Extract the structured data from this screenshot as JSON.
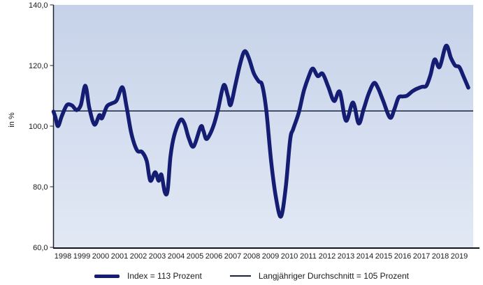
{
  "chart_data": {
    "type": "line",
    "title": "",
    "ylabel": "in %",
    "y_axis": {
      "min": 60,
      "max": 140,
      "tick_values": [
        60,
        80,
        100,
        120,
        140
      ],
      "tick_labels": [
        "60,0",
        "80,0",
        "100,0",
        "120,0",
        "140,0"
      ]
    },
    "x_axis": {
      "tick_labels": [
        "1998",
        "1999",
        "2000",
        "2001",
        "2002",
        "2003",
        "2004",
        "2005",
        "2006",
        "2007",
        "2008",
        "2009",
        "2010",
        "2011",
        "2012",
        "2013",
        "2014",
        "2015",
        "2016",
        "2017",
        "2018",
        "2019"
      ]
    },
    "grid": false,
    "legend_position": "bottom",
    "plot_background_top": "#c6d2e9",
    "plot_background_bottom": "#e2e9f5",
    "axis_color": "#1c2430",
    "text_color": "#1a1a1a",
    "average_line": {
      "value": 105,
      "color": "#17233c",
      "label": "Langjähriger Durchschnitt = 105 Prozent"
    },
    "series": [
      {
        "name": "Index",
        "label": "Index = 113 Prozent",
        "color": "#141d72",
        "latest_value": 113,
        "points": [
          [
            0.0,
            104.8
          ],
          [
            0.1,
            103.0
          ],
          [
            0.24,
            100.0
          ],
          [
            0.45,
            103.5
          ],
          [
            0.72,
            107.0
          ],
          [
            0.98,
            106.8
          ],
          [
            1.1,
            106.0
          ],
          [
            1.24,
            105.3
          ],
          [
            1.45,
            107.0
          ],
          [
            1.69,
            113.3
          ],
          [
            1.9,
            106.0
          ],
          [
            2.17,
            100.5
          ],
          [
            2.43,
            103.6
          ],
          [
            2.57,
            102.6
          ],
          [
            2.83,
            106.5
          ],
          [
            3.09,
            107.5
          ],
          [
            3.35,
            108.5
          ],
          [
            3.65,
            112.8
          ],
          [
            3.87,
            106.5
          ],
          [
            4.13,
            97.5
          ],
          [
            4.43,
            92.0
          ],
          [
            4.69,
            91.5
          ],
          [
            4.94,
            88.5
          ],
          [
            5.13,
            82.0
          ],
          [
            5.39,
            84.8
          ],
          [
            5.57,
            82.0
          ],
          [
            5.72,
            84.0
          ],
          [
            5.9,
            78.2
          ],
          [
            6.05,
            78.8
          ],
          [
            6.2,
            90.0
          ],
          [
            6.4,
            97.0
          ],
          [
            6.72,
            102.0
          ],
          [
            6.94,
            100.8
          ],
          [
            7.17,
            96.0
          ],
          [
            7.43,
            93.3
          ],
          [
            7.8,
            99.8
          ],
          [
            7.94,
            98.5
          ],
          [
            8.09,
            95.8
          ],
          [
            8.28,
            97.2
          ],
          [
            8.5,
            100.5
          ],
          [
            8.72,
            105.5
          ],
          [
            9.02,
            113.5
          ],
          [
            9.24,
            110.0
          ],
          [
            9.39,
            107.0
          ],
          [
            9.65,
            114.0
          ],
          [
            9.91,
            121.0
          ],
          [
            10.13,
            124.7
          ],
          [
            10.35,
            122.5
          ],
          [
            10.61,
            117.5
          ],
          [
            10.87,
            114.8
          ],
          [
            11.06,
            113.5
          ],
          [
            11.28,
            105.0
          ],
          [
            11.54,
            88.0
          ],
          [
            11.8,
            76.0
          ],
          [
            12.06,
            70.2
          ],
          [
            12.31,
            80.0
          ],
          [
            12.54,
            95.5
          ],
          [
            12.7,
            99.0
          ],
          [
            13.0,
            104.5
          ],
          [
            13.26,
            111.5
          ],
          [
            13.52,
            116.3
          ],
          [
            13.74,
            119.0
          ],
          [
            14.0,
            116.5
          ],
          [
            14.26,
            117.3
          ],
          [
            14.56,
            113.0
          ],
          [
            14.87,
            108.3
          ],
          [
            15.17,
            111.3
          ],
          [
            15.5,
            101.8
          ],
          [
            15.87,
            107.8
          ],
          [
            16.17,
            100.9
          ],
          [
            16.43,
            105.5
          ],
          [
            16.69,
            110.5
          ],
          [
            16.98,
            114.2
          ],
          [
            17.2,
            112.5
          ],
          [
            17.46,
            108.5
          ],
          [
            17.83,
            102.8
          ],
          [
            18.06,
            105.5
          ],
          [
            18.28,
            109.4
          ],
          [
            18.5,
            109.8
          ],
          [
            18.72,
            110.0
          ],
          [
            19.02,
            111.5
          ],
          [
            19.28,
            112.4
          ],
          [
            19.54,
            113.0
          ],
          [
            19.76,
            113.3
          ],
          [
            19.98,
            117.0
          ],
          [
            20.2,
            122.0
          ],
          [
            20.46,
            119.5
          ],
          [
            20.8,
            126.5
          ],
          [
            21.06,
            122.5
          ],
          [
            21.28,
            120.0
          ],
          [
            21.5,
            119.5
          ],
          [
            21.72,
            116.5
          ],
          [
            21.98,
            112.7
          ]
        ]
      }
    ]
  },
  "legend": {
    "items": [
      {
        "label": "Index = 113 Prozent",
        "swatch": "thick-line",
        "color": "#141d72"
      },
      {
        "label": "Langjähriger Durchschnitt = 105 Prozent",
        "swatch": "thin-line",
        "color": "#17233c"
      }
    ]
  }
}
